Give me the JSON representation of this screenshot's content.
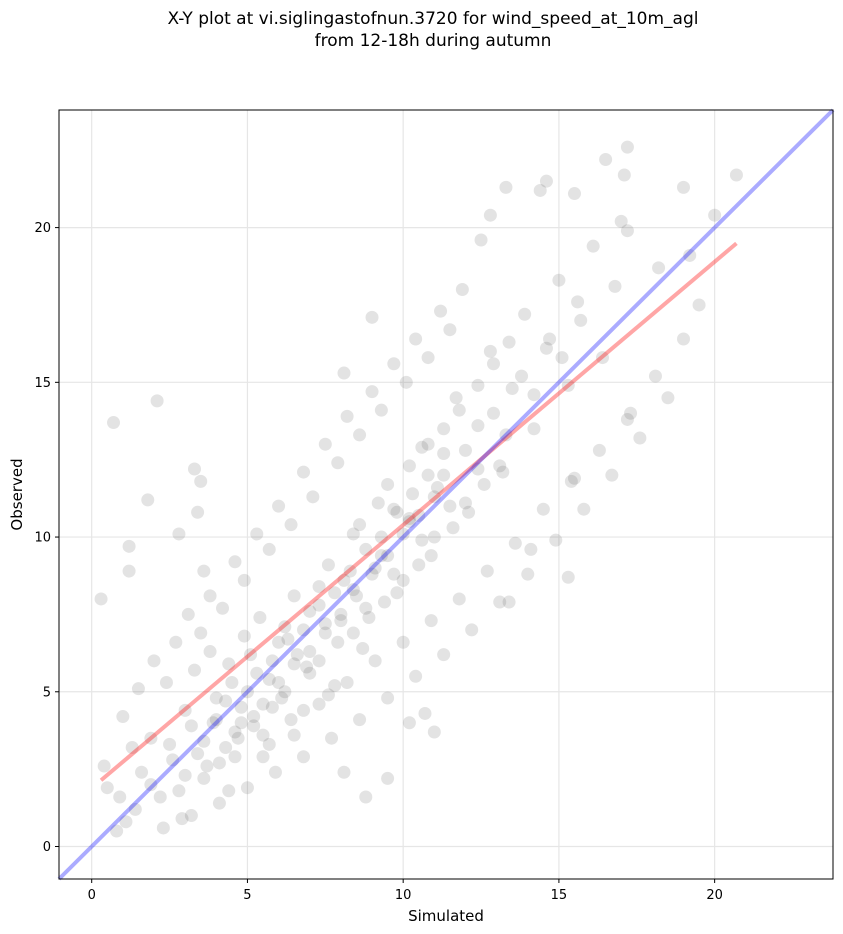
{
  "chart_data": {
    "type": "scatter",
    "title": [
      "X-Y plot at vi.siglingastofnun.3720 for wind_speed_at_10m_agl",
      "from 12-18h during autumn"
    ],
    "xlabel": "Simulated",
    "ylabel": "Observed",
    "xlim": [
      -1.05,
      23.8
    ],
    "ylim": [
      -1.05,
      23.8
    ],
    "xticks": [
      0,
      5,
      10,
      15,
      20
    ],
    "yticks": [
      0,
      5,
      10,
      15,
      20
    ],
    "grid": true,
    "point_color": "#505050",
    "points": [
      [
        0.7,
        13.7
      ],
      [
        2.1,
        14.4
      ],
      [
        1.8,
        11.2
      ],
      [
        3.3,
        12.2
      ],
      [
        3.5,
        11.8
      ],
      [
        2.8,
        10.1
      ],
      [
        1.2,
        9.7
      ],
      [
        0.3,
        8.0
      ],
      [
        1.2,
        8.9
      ],
      [
        3.4,
        10.8
      ],
      [
        3.6,
        8.9
      ],
      [
        9.0,
        17.1
      ],
      [
        8.1,
        15.3
      ],
      [
        13.3,
        21.3
      ],
      [
        15.5,
        21.1
      ],
      [
        17.2,
        22.6
      ],
      [
        16.5,
        22.2
      ],
      [
        17.1,
        21.7
      ],
      [
        14.4,
        21.2
      ],
      [
        14.6,
        21.5
      ],
      [
        19.0,
        21.3
      ],
      [
        20.7,
        21.7
      ],
      [
        15.3,
        8.7
      ],
      [
        14.1,
        9.6
      ],
      [
        13.4,
        7.9
      ],
      [
        11.0,
        3.7
      ],
      [
        10.7,
        4.3
      ],
      [
        10.2,
        4.0
      ],
      [
        8.8,
        1.6
      ],
      [
        9.5,
        2.2
      ],
      [
        8.1,
        2.4
      ],
      [
        15.5,
        11.9
      ],
      [
        17.3,
        14.0
      ],
      [
        19.5,
        17.5
      ],
      [
        18.2,
        18.7
      ],
      [
        19.2,
        19.1
      ],
      [
        20.0,
        20.4
      ],
      [
        17.0,
        20.2
      ],
      [
        12.8,
        20.4
      ],
      [
        12.5,
        19.6
      ],
      [
        0.4,
        2.6
      ],
      [
        0.5,
        1.9
      ],
      [
        0.9,
        1.6
      ],
      [
        1.1,
        0.8
      ],
      [
        0.8,
        0.5
      ],
      [
        1.3,
        3.2
      ],
      [
        1.6,
        2.4
      ],
      [
        1.9,
        3.5
      ],
      [
        2.2,
        1.6
      ],
      [
        2.6,
        2.8
      ],
      [
        2.9,
        0.9
      ],
      [
        3.2,
        3.9
      ],
      [
        3.6,
        2.2
      ],
      [
        4.0,
        4.8
      ],
      [
        4.4,
        1.8
      ],
      [
        4.7,
        3.5
      ],
      [
        5.1,
        6.2
      ],
      [
        5.5,
        2.9
      ],
      [
        5.8,
        4.5
      ],
      [
        6.2,
        7.1
      ],
      [
        6.5,
        3.6
      ],
      [
        6.9,
        5.8
      ],
      [
        7.3,
        8.4
      ],
      [
        7.6,
        4.9
      ],
      [
        8.0,
        7.3
      ],
      [
        8.4,
        10.1
      ],
      [
        8.7,
        6.4
      ],
      [
        9.1,
        9.0
      ],
      [
        9.5,
        11.7
      ],
      [
        9.8,
        8.2
      ],
      [
        10.2,
        10.6
      ],
      [
        10.6,
        12.9
      ],
      [
        10.9,
        9.4
      ],
      [
        11.3,
        12.0
      ],
      [
        11.7,
        14.5
      ],
      [
        12.0,
        11.1
      ],
      [
        12.4,
        13.6
      ],
      [
        12.8,
        16.0
      ],
      [
        13.1,
        12.3
      ],
      [
        13.5,
        14.8
      ],
      [
        13.9,
        17.2
      ],
      [
        14.2,
        13.5
      ],
      [
        14.6,
        16.1
      ],
      [
        15.0,
        18.3
      ],
      [
        15.3,
        14.9
      ],
      [
        15.7,
        17.0
      ],
      [
        16.1,
        19.4
      ],
      [
        16.4,
        15.8
      ],
      [
        16.8,
        18.1
      ],
      [
        17.2,
        19.9
      ],
      [
        1.0,
        4.2
      ],
      [
        1.5,
        5.1
      ],
      [
        2.0,
        6.0
      ],
      [
        2.4,
        5.3
      ],
      [
        2.7,
        6.6
      ],
      [
        3.1,
        7.5
      ],
      [
        3.5,
        6.9
      ],
      [
        3.8,
        8.1
      ],
      [
        4.2,
        7.7
      ],
      [
        4.6,
        9.2
      ],
      [
        4.9,
        8.6
      ],
      [
        5.3,
        10.1
      ],
      [
        5.7,
        9.6
      ],
      [
        6.0,
        11.0
      ],
      [
        6.4,
        10.4
      ],
      [
        6.8,
        12.1
      ],
      [
        7.1,
        11.3
      ],
      [
        7.5,
        13.0
      ],
      [
        7.9,
        12.4
      ],
      [
        8.2,
        13.9
      ],
      [
        8.6,
        13.3
      ],
      [
        9.0,
        14.7
      ],
      [
        9.3,
        14.1
      ],
      [
        9.7,
        15.6
      ],
      [
        10.1,
        15.0
      ],
      [
        10.4,
        16.4
      ],
      [
        10.8,
        15.8
      ],
      [
        11.2,
        17.3
      ],
      [
        11.5,
        16.7
      ],
      [
        11.9,
        18.0
      ],
      [
        1.4,
        1.2
      ],
      [
        1.9,
        2.0
      ],
      [
        2.3,
        0.6
      ],
      [
        2.8,
        1.8
      ],
      [
        3.2,
        1.0
      ],
      [
        3.7,
        2.6
      ],
      [
        4.1,
        1.4
      ],
      [
        4.6,
        2.9
      ],
      [
        5.0,
        1.9
      ],
      [
        5.5,
        3.6
      ],
      [
        5.9,
        2.4
      ],
      [
        6.4,
        4.1
      ],
      [
        6.8,
        2.9
      ],
      [
        7.3,
        4.6
      ],
      [
        7.7,
        3.5
      ],
      [
        8.2,
        5.3
      ],
      [
        8.6,
        4.1
      ],
      [
        9.1,
        6.0
      ],
      [
        9.5,
        4.8
      ],
      [
        10.0,
        6.6
      ],
      [
        10.4,
        5.5
      ],
      [
        10.9,
        7.3
      ],
      [
        11.3,
        6.2
      ],
      [
        11.8,
        8.0
      ],
      [
        12.2,
        7.0
      ],
      [
        12.7,
        8.9
      ],
      [
        13.1,
        7.9
      ],
      [
        13.6,
        9.8
      ],
      [
        14.0,
        8.8
      ],
      [
        14.5,
        10.9
      ],
      [
        14.9,
        9.9
      ],
      [
        15.4,
        11.8
      ],
      [
        15.8,
        10.9
      ],
      [
        16.3,
        12.8
      ],
      [
        16.7,
        12.0
      ],
      [
        17.2,
        13.8
      ],
      [
        17.6,
        13.2
      ],
      [
        18.1,
        15.2
      ],
      [
        18.5,
        14.5
      ],
      [
        19.0,
        16.4
      ],
      [
        2.5,
        3.3
      ],
      [
        3.0,
        4.4
      ],
      [
        3.4,
        3.0
      ],
      [
        3.9,
        4.0
      ],
      [
        4.3,
        3.2
      ],
      [
        4.8,
        4.5
      ],
      [
        5.2,
        3.9
      ],
      [
        5.7,
        5.4
      ],
      [
        6.1,
        4.8
      ],
      [
        6.6,
        6.2
      ],
      [
        7.0,
        5.6
      ],
      [
        7.5,
        7.2
      ],
      [
        7.9,
        6.6
      ],
      [
        8.4,
        8.3
      ],
      [
        8.8,
        7.7
      ],
      [
        9.3,
        9.4
      ],
      [
        9.7,
        8.8
      ],
      [
        10.2,
        10.5
      ],
      [
        10.6,
        9.9
      ],
      [
        11.1,
        11.6
      ],
      [
        11.5,
        11.0
      ],
      [
        12.0,
        12.8
      ],
      [
        12.4,
        12.2
      ],
      [
        12.9,
        14.0
      ],
      [
        13.3,
        13.3
      ],
      [
        13.8,
        15.2
      ],
      [
        14.2,
        14.6
      ],
      [
        14.7,
        16.4
      ],
      [
        15.1,
        15.8
      ],
      [
        15.6,
        17.6
      ],
      [
        3.0,
        2.3
      ],
      [
        3.3,
        5.7
      ],
      [
        3.6,
        3.4
      ],
      [
        3.8,
        6.3
      ],
      [
        4.1,
        2.7
      ],
      [
        4.4,
        5.9
      ],
      [
        4.6,
        3.7
      ],
      [
        4.9,
        6.8
      ],
      [
        5.2,
        4.2
      ],
      [
        5.4,
        7.4
      ],
      [
        5.7,
        3.3
      ],
      [
        6.0,
        6.6
      ],
      [
        6.2,
        5.0
      ],
      [
        6.5,
        8.1
      ],
      [
        6.8,
        4.4
      ],
      [
        7.0,
        7.6
      ],
      [
        7.3,
        6.0
      ],
      [
        7.6,
        9.1
      ],
      [
        7.8,
        5.2
      ],
      [
        8.1,
        8.6
      ],
      [
        8.4,
        6.9
      ],
      [
        8.6,
        10.4
      ],
      [
        8.9,
        7.4
      ],
      [
        9.2,
        11.1
      ],
      [
        9.4,
        7.9
      ],
      [
        9.7,
        10.9
      ],
      [
        10.0,
        8.6
      ],
      [
        10.2,
        12.3
      ],
      [
        10.5,
        9.1
      ],
      [
        10.8,
        13.0
      ],
      [
        11.0,
        10.0
      ],
      [
        11.3,
        13.5
      ],
      [
        11.6,
        10.3
      ],
      [
        11.8,
        14.1
      ],
      [
        12.1,
        10.8
      ],
      [
        12.4,
        14.9
      ],
      [
        12.6,
        11.7
      ],
      [
        12.9,
        15.6
      ],
      [
        13.2,
        12.1
      ],
      [
        13.4,
        16.3
      ],
      [
        4.0,
        4.1
      ],
      [
        4.3,
        4.7
      ],
      [
        4.5,
        5.3
      ],
      [
        4.8,
        4.0
      ],
      [
        5.0,
        5.0
      ],
      [
        5.3,
        5.6
      ],
      [
        5.5,
        4.6
      ],
      [
        5.8,
        6.0
      ],
      [
        6.0,
        5.3
      ],
      [
        6.3,
        6.7
      ],
      [
        6.5,
        5.9
      ],
      [
        6.8,
        7.0
      ],
      [
        7.0,
        6.3
      ],
      [
        7.3,
        7.8
      ],
      [
        7.5,
        6.9
      ],
      [
        7.8,
        8.2
      ],
      [
        8.0,
        7.5
      ],
      [
        8.3,
        8.9
      ],
      [
        8.5,
        8.1
      ],
      [
        8.8,
        9.6
      ],
      [
        9.0,
        8.8
      ],
      [
        9.3,
        10.0
      ],
      [
        9.5,
        9.4
      ],
      [
        9.8,
        10.8
      ],
      [
        10.0,
        10.1
      ],
      [
        10.3,
        11.4
      ],
      [
        10.5,
        10.7
      ],
      [
        10.8,
        12.0
      ],
      [
        11.0,
        11.3
      ],
      [
        11.3,
        12.7
      ]
    ]
  }
}
